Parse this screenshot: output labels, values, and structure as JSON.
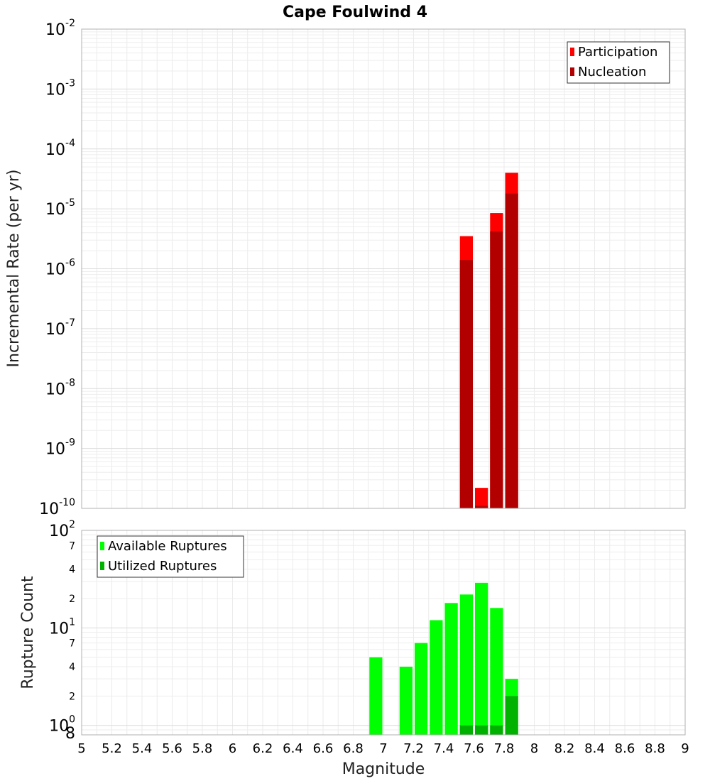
{
  "chart_data": [
    {
      "type": "bar",
      "title": "Cape Foulwind 4",
      "xlabel": "Magnitude",
      "ylabel": "Incremental Rate (per yr)",
      "yscale": "log",
      "ylim": [
        1e-10,
        0.01
      ],
      "xlim": [
        5,
        9
      ],
      "bar_width": 0.1,
      "y_tick_labels": [
        {
          "base": "10",
          "exp": "-10",
          "value": 1e-10
        },
        {
          "base": "10",
          "exp": "-9",
          "value": 1e-09
        },
        {
          "base": "10",
          "exp": "-8",
          "value": 1e-08
        },
        {
          "base": "10",
          "exp": "-7",
          "value": 1e-07
        },
        {
          "base": "10",
          "exp": "-6",
          "value": 1e-06
        },
        {
          "base": "10",
          "exp": "-5",
          "value": 1e-05
        },
        {
          "base": "10",
          "exp": "-4",
          "value": 0.0001
        },
        {
          "base": "10",
          "exp": "-3",
          "value": 0.001
        },
        {
          "base": "10",
          "exp": "-2",
          "value": 0.01
        }
      ],
      "legend": [
        {
          "label": "Participation",
          "color": "#ff0000"
        },
        {
          "label": "Nucleation",
          "color": "#b20000"
        }
      ],
      "series": [
        {
          "name": "Participation",
          "color": "#ff0000",
          "x": [
            7.55,
            7.65,
            7.75,
            7.85
          ],
          "values": [
            3.5e-06,
            2.2e-10,
            8.5e-06,
            4e-05
          ]
        },
        {
          "name": "Nucleation",
          "color": "#b20000",
          "x": [
            7.55,
            7.65,
            7.75,
            7.85
          ],
          "values": [
            1.4e-06,
            1.1e-10,
            4.2e-06,
            1.8e-05
          ]
        }
      ]
    },
    {
      "type": "bar",
      "xlabel": "Magnitude",
      "ylabel": "Rupture Count",
      "yscale": "log",
      "ylim": [
        0.8,
        100
      ],
      "xlim": [
        5,
        9
      ],
      "bar_width": 0.1,
      "y_tick_labels": [
        {
          "base": "10",
          "exp": "0",
          "value": 1
        },
        {
          "base": "10",
          "exp": "1",
          "value": 10
        },
        {
          "base": "10",
          "exp": "2",
          "value": 100
        }
      ],
      "y_minor_labels": [
        {
          "label": "8",
          "value": 0.8
        },
        {
          "label": "2",
          "value": 2
        },
        {
          "label": "4",
          "value": 4
        },
        {
          "label": "7",
          "value": 7
        },
        {
          "label": "2",
          "value": 20
        },
        {
          "label": "4",
          "value": 40
        },
        {
          "label": "7",
          "value": 70
        }
      ],
      "x_tick_labels": [
        "5",
        "5.2",
        "5.4",
        "5.6",
        "5.8",
        "6",
        "6.2",
        "6.4",
        "6.6",
        "6.8",
        "7",
        "7.2",
        "7.4",
        "7.6",
        "7.8",
        "8",
        "8.2",
        "8.4",
        "8.6",
        "8.8",
        "9"
      ],
      "legend": [
        {
          "label": "Available Ruptures",
          "color": "#00ff00"
        },
        {
          "label": "Utilized Ruptures",
          "color": "#00b200"
        }
      ],
      "series": [
        {
          "name": "Available Ruptures",
          "color": "#00ff00",
          "x": [
            6.95,
            7.15,
            7.25,
            7.35,
            7.45,
            7.55,
            7.65,
            7.75,
            7.85
          ],
          "values": [
            5,
            4,
            7,
            12,
            18,
            22,
            29,
            16,
            3
          ]
        },
        {
          "name": "Utilized Ruptures",
          "color": "#00b200",
          "x": [
            7.55,
            7.65,
            7.75,
            7.85
          ],
          "values": [
            1,
            1,
            1,
            2
          ]
        }
      ]
    }
  ]
}
